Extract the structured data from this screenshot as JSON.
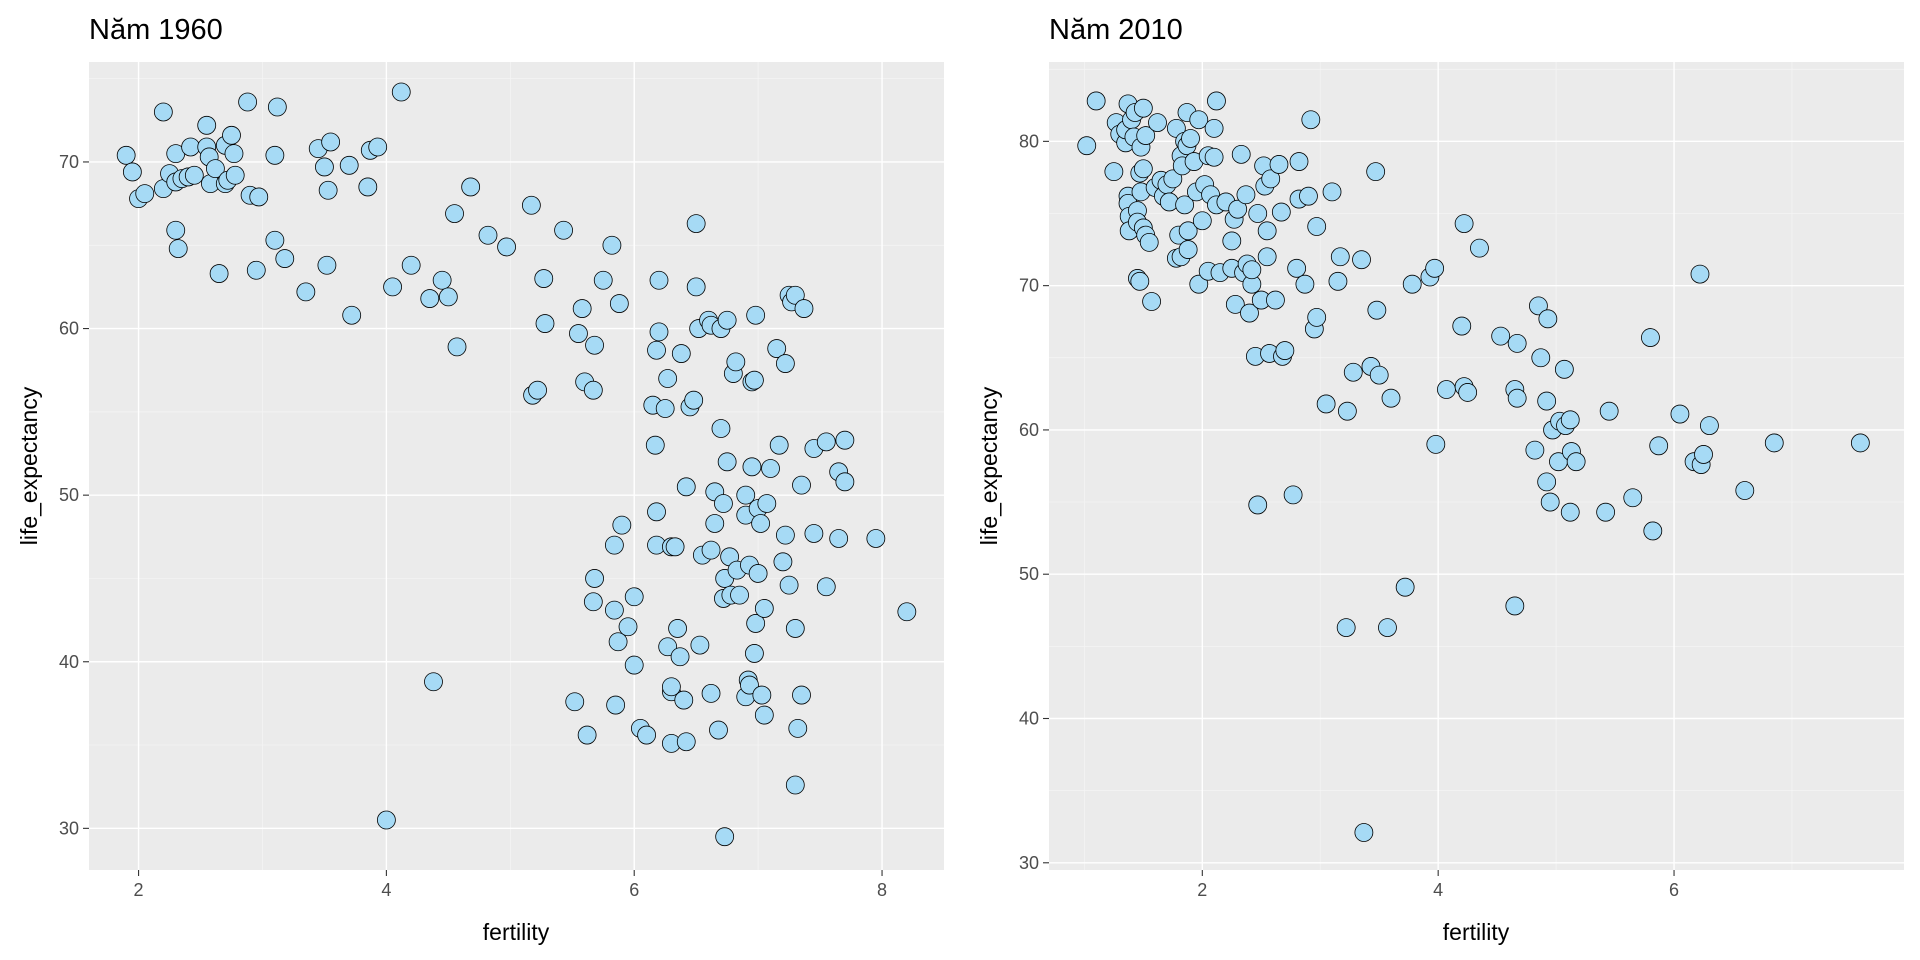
{
  "chart_data": [
    {
      "type": "scatter",
      "title": "Năm 1960",
      "xlabel": "fertility",
      "ylabel": "life_expectancy",
      "xlim": [
        1.6,
        8.5
      ],
      "ylim": [
        27.5,
        76
      ],
      "xticks": [
        2,
        4,
        6,
        8
      ],
      "yticks": [
        30,
        40,
        50,
        60,
        70
      ],
      "grid": true,
      "point_fill": "#A6DAF5",
      "point_stroke": "#000000",
      "points": [
        [
          1.9,
          70.4
        ],
        [
          1.95,
          69.4
        ],
        [
          2.0,
          67.8
        ],
        [
          2.05,
          68.1
        ],
        [
          2.2,
          73.0
        ],
        [
          2.2,
          68.4
        ],
        [
          2.25,
          69.3
        ],
        [
          2.3,
          70.5
        ],
        [
          2.3,
          68.8
        ],
        [
          2.3,
          65.9
        ],
        [
          2.32,
          64.8
        ],
        [
          2.35,
          69.0
        ],
        [
          2.4,
          69.1
        ],
        [
          2.42,
          70.9
        ],
        [
          2.45,
          69.2
        ],
        [
          2.55,
          72.2
        ],
        [
          2.55,
          70.9
        ],
        [
          2.57,
          70.3
        ],
        [
          2.58,
          68.7
        ],
        [
          2.62,
          69.6
        ],
        [
          2.65,
          63.3
        ],
        [
          2.7,
          71.0
        ],
        [
          2.7,
          68.7
        ],
        [
          2.72,
          68.9
        ],
        [
          2.75,
          71.6
        ],
        [
          2.77,
          70.5
        ],
        [
          2.78,
          69.2
        ],
        [
          2.88,
          73.6
        ],
        [
          2.9,
          68.0
        ],
        [
          2.95,
          63.5
        ],
        [
          2.97,
          67.9
        ],
        [
          3.1,
          70.4
        ],
        [
          3.1,
          65.3
        ],
        [
          3.12,
          73.3
        ],
        [
          3.18,
          64.2
        ],
        [
          3.35,
          62.2
        ],
        [
          3.45,
          70.8
        ],
        [
          3.5,
          69.7
        ],
        [
          3.52,
          63.8
        ],
        [
          3.53,
          68.3
        ],
        [
          3.55,
          71.2
        ],
        [
          3.7,
          69.8
        ],
        [
          3.72,
          60.8
        ],
        [
          3.85,
          68.5
        ],
        [
          3.87,
          70.7
        ],
        [
          3.93,
          70.9
        ],
        [
          4.0,
          30.5
        ],
        [
          4.05,
          62.5
        ],
        [
          4.12,
          74.2
        ],
        [
          4.2,
          63.8
        ],
        [
          4.35,
          61.8
        ],
        [
          4.38,
          38.8
        ],
        [
          4.45,
          62.9
        ],
        [
          4.5,
          61.9
        ],
        [
          4.55,
          66.9
        ],
        [
          4.57,
          58.9
        ],
        [
          4.68,
          68.5
        ],
        [
          4.82,
          65.6
        ],
        [
          4.97,
          64.9
        ],
        [
          5.17,
          67.4
        ],
        [
          5.18,
          56.0
        ],
        [
          5.22,
          56.3
        ],
        [
          5.27,
          63.0
        ],
        [
          5.28,
          60.3
        ],
        [
          5.43,
          65.9
        ],
        [
          5.52,
          37.6
        ],
        [
          5.55,
          59.7
        ],
        [
          5.58,
          61.2
        ],
        [
          5.6,
          56.8
        ],
        [
          5.62,
          35.6
        ],
        [
          5.67,
          43.6
        ],
        [
          5.67,
          56.3
        ],
        [
          5.68,
          45.0
        ],
        [
          5.68,
          59.0
        ],
        [
          5.75,
          62.9
        ],
        [
          5.82,
          65.0
        ],
        [
          5.84,
          47.0
        ],
        [
          5.84,
          43.1
        ],
        [
          5.85,
          37.4
        ],
        [
          5.87,
          41.2
        ],
        [
          5.88,
          61.5
        ],
        [
          5.9,
          48.2
        ],
        [
          5.95,
          42.1
        ],
        [
          6.0,
          43.9
        ],
        [
          6.0,
          39.8
        ],
        [
          6.05,
          36.0
        ],
        [
          6.1,
          35.6
        ],
        [
          6.15,
          55.4
        ],
        [
          6.17,
          53.0
        ],
        [
          6.18,
          49.0
        ],
        [
          6.18,
          47.0
        ],
        [
          6.18,
          58.7
        ],
        [
          6.2,
          59.8
        ],
        [
          6.2,
          62.9
        ],
        [
          6.25,
          55.2
        ],
        [
          6.27,
          57.0
        ],
        [
          6.27,
          40.9
        ],
        [
          6.3,
          38.2
        ],
        [
          6.3,
          38.5
        ],
        [
          6.3,
          46.9
        ],
        [
          6.3,
          35.1
        ],
        [
          6.33,
          46.9
        ],
        [
          6.35,
          42.0
        ],
        [
          6.37,
          40.3
        ],
        [
          6.38,
          58.5
        ],
        [
          6.4,
          37.7
        ],
        [
          6.42,
          50.5
        ],
        [
          6.42,
          35.2
        ],
        [
          6.45,
          55.3
        ],
        [
          6.48,
          55.7
        ],
        [
          6.5,
          62.5
        ],
        [
          6.5,
          66.3
        ],
        [
          6.52,
          60.0
        ],
        [
          6.53,
          41.0
        ],
        [
          6.55,
          46.4
        ],
        [
          6.6,
          60.5
        ],
        [
          6.62,
          60.2
        ],
        [
          6.62,
          46.7
        ],
        [
          6.62,
          38.1
        ],
        [
          6.65,
          50.2
        ],
        [
          6.65,
          48.3
        ],
        [
          6.68,
          35.9
        ],
        [
          6.7,
          54.0
        ],
        [
          6.7,
          60.0
        ],
        [
          6.72,
          49.5
        ],
        [
          6.72,
          43.8
        ],
        [
          6.73,
          45.0
        ],
        [
          6.73,
          29.5
        ],
        [
          6.75,
          52.0
        ],
        [
          6.75,
          60.5
        ],
        [
          6.77,
          46.3
        ],
        [
          6.78,
          44.0
        ],
        [
          6.8,
          57.3
        ],
        [
          6.82,
          58.0
        ],
        [
          6.83,
          45.5
        ],
        [
          6.85,
          44.0
        ],
        [
          6.9,
          48.8
        ],
        [
          6.9,
          50.0
        ],
        [
          6.9,
          37.9
        ],
        [
          6.92,
          38.9
        ],
        [
          6.93,
          38.6
        ],
        [
          6.93,
          45.8
        ],
        [
          6.95,
          51.7
        ],
        [
          6.95,
          56.8
        ],
        [
          6.97,
          40.5
        ],
        [
          6.97,
          56.9
        ],
        [
          6.98,
          60.8
        ],
        [
          6.98,
          42.3
        ],
        [
          7.0,
          45.3
        ],
        [
          7.0,
          49.2
        ],
        [
          7.02,
          48.3
        ],
        [
          7.03,
          38.0
        ],
        [
          7.05,
          43.2
        ],
        [
          7.05,
          36.8
        ],
        [
          7.07,
          49.5
        ],
        [
          7.1,
          51.6
        ],
        [
          7.15,
          58.8
        ],
        [
          7.17,
          53.0
        ],
        [
          7.2,
          46.0
        ],
        [
          7.22,
          47.6
        ],
        [
          7.22,
          57.9
        ],
        [
          7.25,
          44.6
        ],
        [
          7.25,
          62.0
        ],
        [
          7.27,
          61.6
        ],
        [
          7.3,
          62.0
        ],
        [
          7.3,
          42.0
        ],
        [
          7.3,
          32.6
        ],
        [
          7.32,
          36.0
        ],
        [
          7.35,
          50.6
        ],
        [
          7.35,
          38.0
        ],
        [
          7.37,
          61.2
        ],
        [
          7.45,
          52.8
        ],
        [
          7.45,
          47.7
        ],
        [
          7.55,
          44.5
        ],
        [
          7.55,
          53.2
        ],
        [
          7.65,
          51.4
        ],
        [
          7.65,
          47.4
        ],
        [
          7.7,
          50.8
        ],
        [
          7.7,
          53.3
        ],
        [
          7.95,
          47.4
        ],
        [
          8.2,
          43.0
        ]
      ]
    },
    {
      "type": "scatter",
      "title": "Năm 2010",
      "xlabel": "fertility",
      "ylabel": "life_expectancy",
      "xlim": [
        0.7,
        7.95
      ],
      "ylim": [
        29.5,
        85.5
      ],
      "xticks": [
        2,
        4,
        6
      ],
      "yticks": [
        30,
        40,
        50,
        60,
        70,
        80
      ],
      "grid": true,
      "point_fill": "#A6DAF5",
      "point_stroke": "#000000",
      "points": [
        [
          1.02,
          79.7
        ],
        [
          1.1,
          82.8
        ],
        [
          1.25,
          77.9
        ],
        [
          1.27,
          81.3
        ],
        [
          1.3,
          80.5
        ],
        [
          1.35,
          79.9
        ],
        [
          1.35,
          80.8
        ],
        [
          1.37,
          82.6
        ],
        [
          1.37,
          76.2
        ],
        [
          1.37,
          75.7
        ],
        [
          1.38,
          74.8
        ],
        [
          1.38,
          73.8
        ],
        [
          1.4,
          81.5
        ],
        [
          1.42,
          80.3
        ],
        [
          1.43,
          82.0
        ],
        [
          1.45,
          75.2
        ],
        [
          1.45,
          74.4
        ],
        [
          1.45,
          70.5
        ],
        [
          1.47,
          77.8
        ],
        [
          1.47,
          70.3
        ],
        [
          1.48,
          79.6
        ],
        [
          1.48,
          76.5
        ],
        [
          1.5,
          82.3
        ],
        [
          1.5,
          78.1
        ],
        [
          1.5,
          74.0
        ],
        [
          1.52,
          80.4
        ],
        [
          1.52,
          73.5
        ],
        [
          1.55,
          73.0
        ],
        [
          1.57,
          68.9
        ],
        [
          1.6,
          76.8
        ],
        [
          1.62,
          81.3
        ],
        [
          1.65,
          77.3
        ],
        [
          1.67,
          76.2
        ],
        [
          1.7,
          77.0
        ],
        [
          1.72,
          75.8
        ],
        [
          1.75,
          77.4
        ],
        [
          1.78,
          80.9
        ],
        [
          1.78,
          71.9
        ],
        [
          1.8,
          73.5
        ],
        [
          1.82,
          72.0
        ],
        [
          1.82,
          79.0
        ],
        [
          1.83,
          78.3
        ],
        [
          1.85,
          80.0
        ],
        [
          1.85,
          75.6
        ],
        [
          1.87,
          82.0
        ],
        [
          1.87,
          79.7
        ],
        [
          1.88,
          73.8
        ],
        [
          1.88,
          72.5
        ],
        [
          1.9,
          80.2
        ],
        [
          1.93,
          78.6
        ],
        [
          1.95,
          76.5
        ],
        [
          1.97,
          81.5
        ],
        [
          1.97,
          70.1
        ],
        [
          2.0,
          74.5
        ],
        [
          2.02,
          77.0
        ],
        [
          2.05,
          79.0
        ],
        [
          2.05,
          71.0
        ],
        [
          2.07,
          76.3
        ],
        [
          2.1,
          78.9
        ],
        [
          2.1,
          80.9
        ],
        [
          2.12,
          82.8
        ],
        [
          2.12,
          75.6
        ],
        [
          2.15,
          70.9
        ],
        [
          2.2,
          75.8
        ],
        [
          2.25,
          71.2
        ],
        [
          2.25,
          73.1
        ],
        [
          2.27,
          74.6
        ],
        [
          2.28,
          68.7
        ],
        [
          2.3,
          75.3
        ],
        [
          2.33,
          79.1
        ],
        [
          2.35,
          70.9
        ],
        [
          2.37,
          76.3
        ],
        [
          2.38,
          71.5
        ],
        [
          2.4,
          68.1
        ],
        [
          2.42,
          70.1
        ],
        [
          2.42,
          71.1
        ],
        [
          2.45,
          65.1
        ],
        [
          2.47,
          54.8
        ],
        [
          2.47,
          75.0
        ],
        [
          2.5,
          69.0
        ],
        [
          2.52,
          78.3
        ],
        [
          2.53,
          76.9
        ],
        [
          2.55,
          73.8
        ],
        [
          2.55,
          72.0
        ],
        [
          2.57,
          65.3
        ],
        [
          2.58,
          77.4
        ],
        [
          2.62,
          69.0
        ],
        [
          2.65,
          78.4
        ],
        [
          2.67,
          75.1
        ],
        [
          2.68,
          65.1
        ],
        [
          2.7,
          65.5
        ],
        [
          2.77,
          55.5
        ],
        [
          2.8,
          71.2
        ],
        [
          2.82,
          76.0
        ],
        [
          2.82,
          78.6
        ],
        [
          2.87,
          70.1
        ],
        [
          2.9,
          76.2
        ],
        [
          2.92,
          81.5
        ],
        [
          2.95,
          67.0
        ],
        [
          2.97,
          74.1
        ],
        [
          2.97,
          67.8
        ],
        [
          3.05,
          61.8
        ],
        [
          3.1,
          76.5
        ],
        [
          3.15,
          70.3
        ],
        [
          3.17,
          72.0
        ],
        [
          3.22,
          46.3
        ],
        [
          3.23,
          61.3
        ],
        [
          3.28,
          64.0
        ],
        [
          3.35,
          71.8
        ],
        [
          3.37,
          32.1
        ],
        [
          3.43,
          64.4
        ],
        [
          3.47,
          77.9
        ],
        [
          3.48,
          68.3
        ],
        [
          3.5,
          63.8
        ],
        [
          3.57,
          46.3
        ],
        [
          3.6,
          62.2
        ],
        [
          3.72,
          49.1
        ],
        [
          3.78,
          70.1
        ],
        [
          3.93,
          70.6
        ],
        [
          3.97,
          71.2
        ],
        [
          3.98,
          59.0
        ],
        [
          4.07,
          62.8
        ],
        [
          4.2,
          67.2
        ],
        [
          4.22,
          74.3
        ],
        [
          4.22,
          63.0
        ],
        [
          4.25,
          62.6
        ],
        [
          4.35,
          72.6
        ],
        [
          4.53,
          66.5
        ],
        [
          4.65,
          62.8
        ],
        [
          4.67,
          62.2
        ],
        [
          4.67,
          66.0
        ],
        [
          4.65,
          47.8
        ],
        [
          4.82,
          58.6
        ],
        [
          4.85,
          68.6
        ],
        [
          4.87,
          65.0
        ],
        [
          4.92,
          62.0
        ],
        [
          4.92,
          56.4
        ],
        [
          4.93,
          67.7
        ],
        [
          4.95,
          55.0
        ],
        [
          4.97,
          60.0
        ],
        [
          5.02,
          57.8
        ],
        [
          5.03,
          60.6
        ],
        [
          5.07,
          64.2
        ],
        [
          5.08,
          60.3
        ],
        [
          5.12,
          60.7
        ],
        [
          5.12,
          54.3
        ],
        [
          5.13,
          58.5
        ],
        [
          5.17,
          57.8
        ],
        [
          5.42,
          54.3
        ],
        [
          5.45,
          61.3
        ],
        [
          5.65,
          55.3
        ],
        [
          5.8,
          66.4
        ],
        [
          5.82,
          53.0
        ],
        [
          5.87,
          58.9
        ],
        [
          6.05,
          61.1
        ],
        [
          6.17,
          57.8
        ],
        [
          6.22,
          70.8
        ],
        [
          6.23,
          57.6
        ],
        [
          6.25,
          58.3
        ],
        [
          6.3,
          60.3
        ],
        [
          6.6,
          55.8
        ],
        [
          6.85,
          59.1
        ],
        [
          7.58,
          59.1
        ]
      ]
    }
  ]
}
